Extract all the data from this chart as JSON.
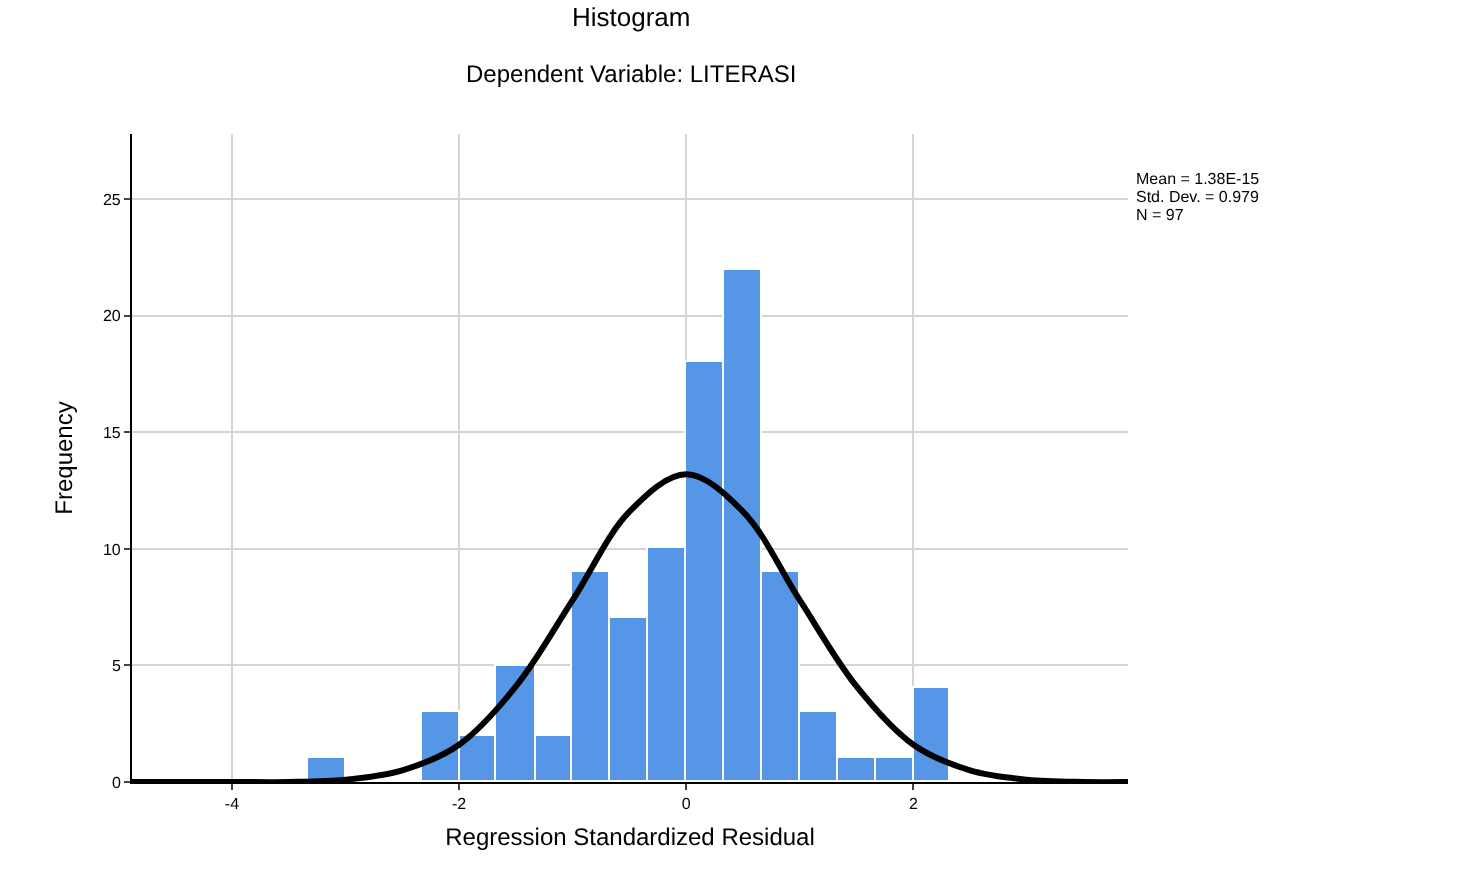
{
  "chart_data": {
    "type": "histogram",
    "title": "Histogram",
    "subtitle": "Dependent Variable: LITERASI",
    "xlabel": "Regression Standardized Residual",
    "ylabel": "Frequency",
    "bins": [
      -3.33,
      -3,
      -2.33,
      -2,
      -1.67,
      -1.33,
      -1,
      -0.67,
      -0.33,
      0,
      0.33,
      0.67,
      1,
      1.33,
      1.67,
      2,
      2.33
    ],
    "series": [
      {
        "color": "#5596e6",
        "values": [
          1,
          0,
          3,
          2,
          5,
          2,
          9,
          7,
          10,
          18,
          22,
          9,
          3,
          1,
          1,
          4
        ]
      },
      {
        "type": "line",
        "color": "#000000",
        "x": [
          -4.88,
          -4.5,
          -4,
          -3.5,
          -3,
          -2.5,
          -2,
          -1.5,
          -1,
          -0.5,
          0,
          0.5,
          1,
          1.5,
          2,
          2.5,
          3,
          3.5,
          3.89
        ],
        "values": [
          0,
          0,
          0,
          0,
          0.1,
          0.5,
          1.6,
          4.1,
          7.8,
          11.6,
          13.2,
          11.6,
          7.8,
          4.1,
          1.6,
          0.5,
          0.1,
          0,
          0
        ]
      }
    ],
    "xlim": [
      -4.88,
      3.89
    ],
    "xticks": [
      -4,
      -2,
      0,
      2
    ],
    "ylim": [
      0,
      27.8
    ],
    "yticks": [
      0,
      5,
      10,
      15,
      20,
      25
    ],
    "grid": true,
    "annotations": [
      "Mean = 1.38E-15",
      "Std. Dev. = 0.979",
      "N = 97"
    ]
  }
}
